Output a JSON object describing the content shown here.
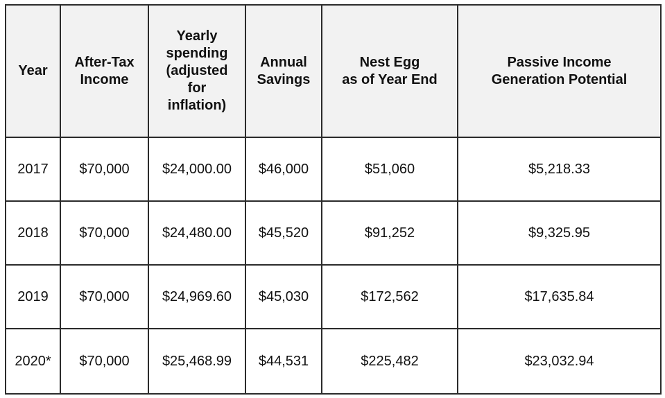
{
  "table": {
    "headers": [
      "Year",
      "After-Tax\nIncome",
      "Yearly\nspending\n(adjusted\nfor\ninflation)",
      "Annual\nSavings",
      "Nest Egg\nas of Year End",
      "Passive Income\nGeneration Potential"
    ],
    "rows": [
      [
        "2017",
        "$70,000",
        "$24,000.00",
        "$46,000",
        "$51,060",
        "$5,218.33"
      ],
      [
        "2018",
        "$70,000",
        "$24,480.00",
        "$45,520",
        "$91,252",
        "$9,325.95"
      ],
      [
        "2019",
        "$70,000",
        "$24,969.60",
        "$45,030",
        "$172,562",
        "$17,635.84"
      ],
      [
        "2020*",
        "$70,000",
        "$25,468.99",
        "$44,531",
        "$225,482",
        "$23,032.94"
      ]
    ]
  },
  "colors": {
    "header_background": "#f2f2f2",
    "border": "#2b2b2b",
    "text": "#111111"
  }
}
